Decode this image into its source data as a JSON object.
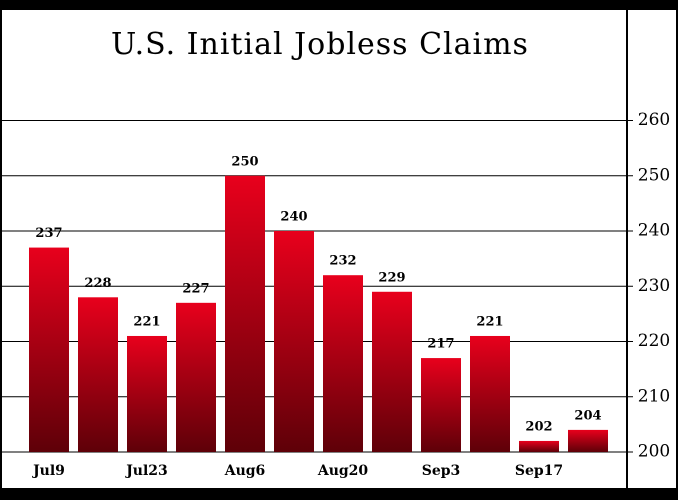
{
  "chart_data": {
    "type": "bar",
    "title": "U.S. Initial Jobless Claims",
    "categories": [
      "Jul9",
      null,
      "Jul23",
      null,
      "Aug6",
      null,
      "Aug20",
      null,
      "Sep3",
      null,
      "Sep17",
      null
    ],
    "values": [
      237,
      228,
      221,
      227,
      250,
      240,
      232,
      229,
      217,
      221,
      202,
      204
    ],
    "color": "#e8001c",
    "ylim": [
      200,
      280
    ],
    "yticks": [
      200,
      210,
      220,
      230,
      240,
      250,
      260
    ],
    "grid": true
  }
}
